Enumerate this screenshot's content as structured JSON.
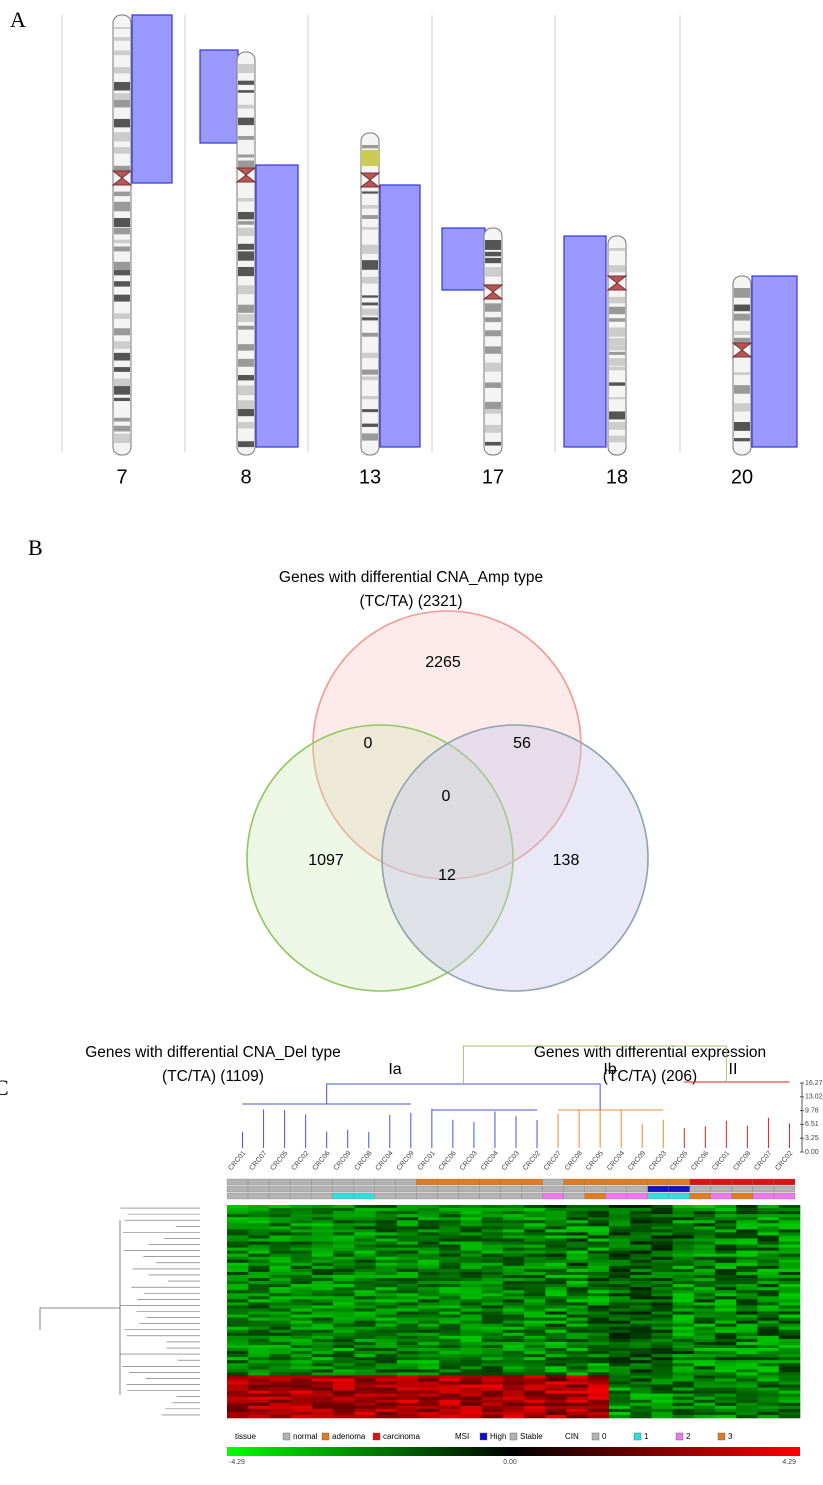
{
  "panels": {
    "a": {
      "label": "A",
      "chromosomes": [
        "7",
        "8",
        "13",
        "17",
        "18",
        "20"
      ]
    },
    "b": {
      "label": "B",
      "title": [
        "Genes with differential CNA_Amp type",
        "(TC/TA) (2321)"
      ],
      "left": [
        "Genes with differential CNA_Del type",
        "(TC/TA) (1109)"
      ],
      "right": [
        "Genes with differential expression",
        "(TC/TA) (206)"
      ],
      "regions": {
        "amp_only": "2265",
        "amp_del": "0",
        "amp_expr": "56",
        "all": "0",
        "del_only": "1097",
        "del_expr": "12",
        "expr_only": "138"
      }
    },
    "c": {
      "label": "C",
      "clusters": [
        "Ia",
        "Ib",
        "II"
      ],
      "scale": [
        "16.27",
        "13.02",
        "9.76",
        "6.51",
        "3.25",
        "0.00"
      ],
      "samples": [
        "CRC01",
        "CRC07",
        "CRC05",
        "CRC02",
        "CRC06",
        "CRC09",
        "CRC08",
        "CRC04",
        "CRC09",
        "CRC01",
        "CRC06",
        "CRC03",
        "CRC04",
        "CRC03",
        "CRC02",
        "CRC07",
        "CRC08",
        "CRC05",
        "CRC04",
        "CRC09",
        "CRC03",
        "CRC05",
        "CRC06",
        "CRC01",
        "CRC08",
        "CRC07",
        "CRC02"
      ],
      "legend": {
        "tissue": "tissue",
        "normal": "normal",
        "adenoma": "adenoma",
        "carcinoma": "carcinoma",
        "msi": "MSI",
        "high": "High",
        "stable": "Stable",
        "cin": "CIN",
        "c0": "0",
        "c1": "1",
        "c2": "2",
        "c3": "3"
      },
      "colorbar": [
        "-4.29",
        "0.00",
        "4.29"
      ]
    }
  }
}
